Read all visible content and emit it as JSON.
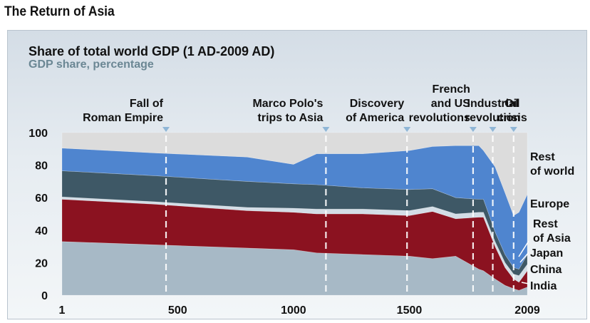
{
  "page": {
    "title": "The Return of Asia"
  },
  "chart_data": {
    "type": "area",
    "stacked": true,
    "title": "Share of total world GDP (1 AD-2009 AD)",
    "subtitle": "GDP share, percentage",
    "xlabel": "",
    "ylabel": "",
    "xlim": [
      1,
      2009
    ],
    "ylim": [
      0,
      100
    ],
    "xticks": [
      {
        "value": 1,
        "label": "1"
      },
      {
        "value": 500,
        "label": "500"
      },
      {
        "value": 1000,
        "label": "1000"
      },
      {
        "value": 1500,
        "label": "1500"
      },
      {
        "value": 2009,
        "label": "2009"
      }
    ],
    "yticks": [
      0,
      20,
      40,
      60,
      80,
      100
    ],
    "x": [
      1,
      400,
      800,
      1000,
      1100,
      1300,
      1500,
      1600,
      1700,
      1800,
      1820,
      1870,
      1913,
      1950,
      1973,
      2009
    ],
    "series": [
      {
        "name": "India",
        "color": "#a7b9c6",
        "values": [
          33,
          31,
          29,
          28,
          26,
          25,
          24,
          22.5,
          24,
          16,
          15,
          10,
          6,
          4,
          3,
          5
        ]
      },
      {
        "name": "China",
        "color": "#8b1220",
        "values": [
          26,
          25,
          23,
          23,
          24,
          25,
          25,
          29,
          23,
          32,
          33,
          20,
          11,
          6,
          5,
          10
        ]
      },
      {
        "name": "Japan",
        "color": "#d3dde6",
        "values": [
          1.5,
          1.5,
          2,
          2.5,
          3,
          3,
          3,
          3,
          3,
          3,
          3,
          3,
          3,
          3,
          4,
          4
        ]
      },
      {
        "name": "Rest of Asia",
        "color": "#3e5866",
        "values": [
          16,
          16,
          16,
          15,
          15,
          13,
          13,
          11,
          10,
          8,
          8,
          6,
          5,
          4,
          4,
          6
        ]
      },
      {
        "name": "Europe",
        "color": "#4f85cf",
        "values": [
          14,
          14,
          15,
          12,
          19,
          21,
          24,
          26,
          32,
          33,
          30,
          40,
          38,
          32,
          35,
          37
        ]
      },
      {
        "name": "Rest of world",
        "color": "#dcdcdc",
        "values": [
          9.5,
          12.5,
          15,
          19.5,
          13,
          13,
          11,
          8.5,
          8,
          8,
          11,
          21,
          37,
          51,
          49,
          38
        ]
      }
    ],
    "events": [
      {
        "year": 450,
        "label": [
          "Fall of",
          "Roman Empire"
        ]
      },
      {
        "year": 1140,
        "label": [
          "Marco Polo's",
          "trips to Asia"
        ]
      },
      {
        "year": 1490,
        "label": [
          "Discovery",
          "of America"
        ]
      },
      {
        "year": 1775,
        "label": [
          "French",
          "and US",
          "revolutions"
        ]
      },
      {
        "year": 1860,
        "label": [
          "Industrial",
          "revolution"
        ]
      },
      {
        "year": 1950,
        "label": [
          "Oil",
          "crisis"
        ]
      }
    ]
  }
}
